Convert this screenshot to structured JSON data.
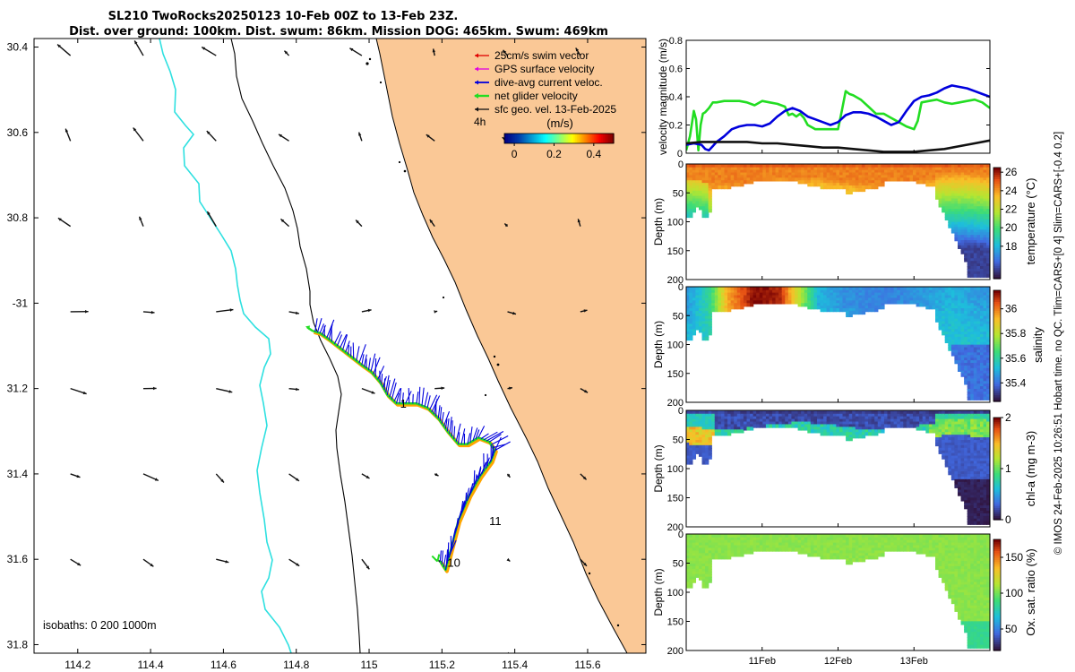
{
  "title": {
    "line1": "SL210 TwoRocks20250123 10-Feb 00Z to 13-Feb 23Z.",
    "line2": "Dist. over ground: 100km. Dist. swum: 86km. Mission DOG: 465km. Swum: 469km"
  },
  "footer_text": "© IMOS 24-Feb-2025 10:26:51 Hobart time. no QC. Tlim=CARS+[0 4] Slim=CARS+[-0.4 0.2]",
  "colors": {
    "land": "#FAC896",
    "isobath_cyan": "#2EE0E0",
    "track_blue": "#0000DD",
    "track_green": "#22DD22",
    "track_orange": "#FFA500",
    "velocity_black": "#111111"
  },
  "chart_data": [
    {
      "type": "map",
      "id": "track-map",
      "xlim": [
        114.08,
        115.76
      ],
      "ylim": [
        -31.82,
        -30.38
      ],
      "x_ticks": [
        114.2,
        114.4,
        114.6,
        114.8,
        115,
        115.2,
        115.4,
        115.6
      ],
      "x_tick_labels": [
        "114.2",
        "114.4",
        "114.6",
        "114.8",
        "115",
        "115.2",
        "115.4",
        "115.6"
      ],
      "y_ticks": [
        -30.4,
        -30.6,
        -30.8,
        -31,
        -31.2,
        -31.4,
        -31.6,
        -31.8
      ],
      "y_tick_labels": [
        "30.4",
        "30.6",
        "30.8",
        "-31",
        "31.2",
        "31.4",
        "31.6",
        "31.8"
      ],
      "legend": {
        "entries": [
          {
            "label": "25cm/s swim vector",
            "color": "#E00000"
          },
          {
            "label": "GPS surface velocity",
            "color": "#E000E0"
          },
          {
            "label": "dive-avg current veloc.",
            "color": "#0000DD"
          },
          {
            "label": "net glider velocity",
            "color": "#22DD22"
          },
          {
            "label": "sfc geo. vel. 13-Feb-2025",
            "color": "#111111"
          }
        ],
        "interval_label": "4h",
        "colorbar_title": "(m/s)",
        "colorbar_ticks": [
          "0",
          "0.2",
          "0.4"
        ],
        "colorbar_range": [
          -0.05,
          0.5
        ]
      },
      "isobath_note": "isobaths: 0   200  1000m",
      "day_labels": [
        {
          "label": "10",
          "lon": 115.215,
          "lat": -31.617
        },
        {
          "label": "11",
          "lon": 115.33,
          "lat": -31.52
        },
        {
          "label": "1",
          "lon": 115.085,
          "lat": -31.245
        }
      ],
      "track": [
        [
          115.195,
          -31.605
        ],
        [
          115.21,
          -31.625
        ],
        [
          115.225,
          -31.575
        ],
        [
          115.245,
          -31.51
        ],
        [
          115.275,
          -31.45
        ],
        [
          115.305,
          -31.405
        ],
        [
          115.335,
          -31.37
        ],
        [
          115.345,
          -31.345
        ],
        [
          115.33,
          -31.325
        ],
        [
          115.3,
          -31.315
        ],
        [
          115.27,
          -31.33
        ],
        [
          115.245,
          -31.33
        ],
        [
          115.215,
          -31.3
        ],
        [
          115.19,
          -31.27
        ],
        [
          115.16,
          -31.245
        ],
        [
          115.13,
          -31.235
        ],
        [
          115.1,
          -31.235
        ],
        [
          115.075,
          -31.235
        ],
        [
          115.05,
          -31.215
        ],
        [
          115.03,
          -31.185
        ],
        [
          115.005,
          -31.16
        ],
        [
          114.98,
          -31.145
        ],
        [
          114.95,
          -31.125
        ],
        [
          114.92,
          -31.105
        ],
        [
          114.89,
          -31.085
        ],
        [
          114.865,
          -31.07
        ],
        [
          114.845,
          -31.065
        ]
      ],
      "geo_vel_lons": [
        114.18,
        114.38,
        114.58,
        114.78,
        114.98,
        115.18,
        115.38,
        115.58
      ],
      "geo_vel_lats": [
        -30.42,
        -30.62,
        -30.82,
        -31.02,
        -31.2,
        -31.4,
        -31.6,
        -31.82
      ]
    },
    {
      "type": "line",
      "id": "velocity-magnitude",
      "ylabel": "velocity magnitude (m/s)",
      "ylim": [
        0,
        0.8
      ],
      "y_ticks": [
        0,
        0.2,
        0.4,
        0.6,
        0.8
      ],
      "y_tick_labels": [
        "0",
        "0.2",
        "0.4",
        "0.6",
        "0.8"
      ],
      "xlim": [
        0,
        4
      ],
      "series": [
        {
          "name": "net glider velocity",
          "color": "#22DD22",
          "x": [
            0.0,
            0.05,
            0.1,
            0.13,
            0.16,
            0.19,
            0.22,
            0.25,
            0.3,
            0.35,
            0.4,
            0.5,
            0.6,
            0.7,
            0.8,
            0.9,
            1.0,
            1.1,
            1.2,
            1.3,
            1.35,
            1.4,
            1.45,
            1.5,
            1.55,
            1.6,
            1.7,
            1.8,
            1.9,
            2.0,
            2.05,
            2.1,
            2.15,
            2.2,
            2.3,
            2.4,
            2.5,
            2.6,
            2.7,
            2.8,
            2.9,
            3.0,
            3.05,
            3.1,
            3.2,
            3.3,
            3.4,
            3.5,
            3.6,
            3.7,
            3.8,
            3.9,
            4.0
          ],
          "y": [
            0.02,
            0.12,
            0.3,
            0.24,
            0.02,
            0.2,
            0.28,
            0.29,
            0.32,
            0.36,
            0.36,
            0.37,
            0.37,
            0.37,
            0.36,
            0.34,
            0.37,
            0.36,
            0.35,
            0.33,
            0.27,
            0.28,
            0.26,
            0.28,
            0.25,
            0.2,
            0.17,
            0.17,
            0.17,
            0.17,
            0.3,
            0.44,
            0.42,
            0.41,
            0.38,
            0.33,
            0.28,
            0.28,
            0.25,
            0.22,
            0.19,
            0.17,
            0.23,
            0.36,
            0.37,
            0.38,
            0.36,
            0.35,
            0.36,
            0.37,
            0.38,
            0.36,
            0.32
          ]
        },
        {
          "name": "dive-avg current veloc.",
          "color": "#0000DD",
          "x": [
            0.0,
            0.1,
            0.2,
            0.25,
            0.3,
            0.35,
            0.4,
            0.5,
            0.6,
            0.7,
            0.8,
            0.9,
            1.0,
            1.1,
            1.2,
            1.3,
            1.4,
            1.5,
            1.6,
            1.7,
            1.8,
            1.9,
            2.0,
            2.1,
            2.2,
            2.3,
            2.4,
            2.5,
            2.6,
            2.7,
            2.8,
            2.9,
            3.0,
            3.1,
            3.2,
            3.3,
            3.4,
            3.5,
            3.6,
            3.7,
            3.8,
            3.9,
            4.0
          ],
          "y": [
            0.06,
            0.07,
            0.06,
            0.03,
            0.02,
            0.05,
            0.08,
            0.12,
            0.17,
            0.19,
            0.2,
            0.2,
            0.19,
            0.21,
            0.26,
            0.3,
            0.32,
            0.3,
            0.26,
            0.24,
            0.22,
            0.2,
            0.22,
            0.27,
            0.29,
            0.29,
            0.28,
            0.26,
            0.23,
            0.2,
            0.22,
            0.3,
            0.37,
            0.4,
            0.41,
            0.43,
            0.46,
            0.48,
            0.47,
            0.46,
            0.44,
            0.42,
            0.4
          ]
        },
        {
          "name": "sfc geo. vel.",
          "color": "#111111",
          "x": [
            0.0,
            0.2,
            0.4,
            0.6,
            0.8,
            1.0,
            1.2,
            1.4,
            1.6,
            1.8,
            2.0,
            2.2,
            2.4,
            2.6,
            2.8,
            3.0,
            3.2,
            3.4,
            3.6,
            3.8,
            4.0
          ],
          "y": [
            0.07,
            0.08,
            0.08,
            0.08,
            0.08,
            0.07,
            0.07,
            0.06,
            0.05,
            0.04,
            0.04,
            0.03,
            0.02,
            0.01,
            0.01,
            0.01,
            0.02,
            0.03,
            0.05,
            0.07,
            0.09
          ]
        }
      ]
    },
    {
      "type": "heatmap",
      "id": "temperature-section",
      "colorbar_label": "temperature (°C)",
      "ylabel": "Depth (m)",
      "ylim": [
        200,
        0
      ],
      "y_ticks": [
        0,
        50,
        100,
        150,
        200
      ],
      "y_tick_labels": [
        "0",
        "50",
        "100",
        "150",
        "200"
      ],
      "colorbar_range": [
        14.5,
        26.5
      ],
      "colorbar_ticks": [
        18,
        20,
        22,
        24,
        26
      ],
      "colorbar_tick_labels": [
        "18",
        "20",
        "22",
        "24",
        "26"
      ],
      "mixed_layer_value": 24.5,
      "deep_value": 15.5,
      "upper_value": 25.3,
      "mixed_noise": 0.6
    },
    {
      "type": "heatmap",
      "id": "salinity-section",
      "colorbar_label": "salinity",
      "ylabel": "Depth (m)",
      "ylim": [
        200,
        0
      ],
      "y_ticks": [
        0,
        50,
        100,
        150,
        200
      ],
      "y_tick_labels": [
        "0",
        "50",
        "100",
        "150",
        "200"
      ],
      "colorbar_range": [
        35.25,
        36.15
      ],
      "colorbar_ticks": [
        35.4,
        35.6,
        35.8,
        36
      ],
      "colorbar_tick_labels": [
        "35.4",
        "35.6",
        "35.8",
        "36"
      ],
      "salinity_surface_profile": [
        {
          "t": 0.0,
          "v": 35.45
        },
        {
          "t": 0.3,
          "v": 35.6
        },
        {
          "t": 0.55,
          "v": 35.95
        },
        {
          "t": 0.9,
          "v": 36.15
        },
        {
          "t": 1.25,
          "v": 36.1
        },
        {
          "t": 1.5,
          "v": 35.8
        },
        {
          "t": 1.75,
          "v": 35.5
        },
        {
          "t": 2.1,
          "v": 35.45
        },
        {
          "t": 2.6,
          "v": 35.42
        },
        {
          "t": 3.0,
          "v": 35.45
        },
        {
          "t": 3.5,
          "v": 35.5
        },
        {
          "t": 4.0,
          "v": 35.45
        }
      ],
      "deep_value": 35.55
    },
    {
      "type": "heatmap",
      "id": "chla-section",
      "colorbar_label": "chl-a (mg m-3)",
      "ylabel": "Depth (m)",
      "ylim": [
        200,
        0
      ],
      "y_ticks": [
        0,
        50,
        100,
        150,
        200
      ],
      "y_tick_labels": [
        "0",
        "50",
        "100",
        "150",
        "200"
      ],
      "colorbar_range": [
        0,
        2
      ],
      "colorbar_ticks": [
        0,
        1,
        2
      ],
      "colorbar_tick_labels": [
        "0",
        "1",
        "2"
      ],
      "surface_value": 0.2,
      "mid_value": 0.75,
      "deep_value": 0.1
    },
    {
      "type": "heatmap",
      "id": "oxygen-section",
      "colorbar_label": "Ox. sat. ratio (%)",
      "ylabel": "Depth (m)",
      "ylim": [
        200,
        0
      ],
      "y_ticks": [
        0,
        50,
        100,
        150,
        200
      ],
      "y_tick_labels": [
        "0",
        "50",
        "100",
        "150",
        "200"
      ],
      "colorbar_range": [
        20,
        175
      ],
      "colorbar_ticks": [
        50,
        100,
        150
      ],
      "colorbar_tick_labels": [
        "50",
        "100",
        "150"
      ],
      "value": 105,
      "x_ticks": [
        1,
        2,
        3
      ],
      "x_tick_labels": [
        "11Feb",
        "12Feb",
        "13Feb"
      ]
    }
  ]
}
